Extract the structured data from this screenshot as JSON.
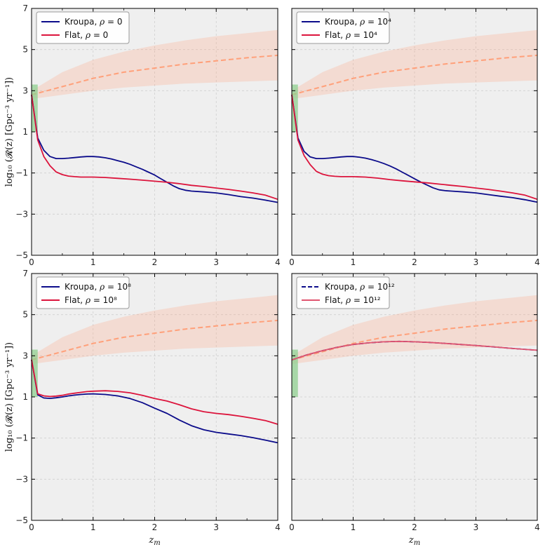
{
  "chart_data": [
    {
      "type": "line",
      "xlabel": "",
      "ylabel": "log₁₀ (𝓡(z) [Gpc⁻³ yr⁻¹])",
      "xlim": [
        0,
        4
      ],
      "ylim": [
        -5,
        7
      ],
      "xticks": [
        "0",
        "1",
        "2",
        "3",
        "4"
      ],
      "yticks": [
        "−5",
        "−3",
        "−1",
        "1",
        "3",
        "5",
        "7"
      ],
      "grid": true,
      "legend_position": "top-left",
      "observed_band": {
        "x": [
          0,
          0.1
        ],
        "y": [
          1.0,
          3.3
        ],
        "color": "#8fcf8f"
      },
      "reference_curve": {
        "x": [
          0,
          0.5,
          1,
          1.5,
          2,
          2.5,
          3,
          3.5,
          4
        ],
        "y": [
          2.8,
          3.2,
          3.6,
          3.9,
          4.1,
          4.3,
          4.45,
          4.6,
          4.72
        ],
        "lower": [
          2.6,
          2.8,
          3.0,
          3.15,
          3.25,
          3.35,
          3.4,
          3.45,
          3.5
        ],
        "upper": [
          3.0,
          3.9,
          4.5,
          4.9,
          5.2,
          5.45,
          5.65,
          5.8,
          5.95
        ],
        "color": "#ffa07a"
      },
      "series": [
        {
          "name": "Kroupa, ρ = 0",
          "color": "#0b0b8a",
          "dash": "solid",
          "x": [
            0,
            0.1,
            0.2,
            0.3,
            0.4,
            0.5,
            0.6,
            0.7,
            0.8,
            0.9,
            1.0,
            1.1,
            1.2,
            1.3,
            1.4,
            1.5,
            1.6,
            1.7,
            1.8,
            1.9,
            2.0,
            2.1,
            2.2,
            2.3,
            2.4,
            2.5,
            2.6,
            2.8,
            3.0,
            3.2,
            3.4,
            3.6,
            3.8,
            4.0
          ],
          "y": [
            2.8,
            0.7,
            0.1,
            -0.2,
            -0.3,
            -0.3,
            -0.28,
            -0.25,
            -0.22,
            -0.2,
            -0.2,
            -0.22,
            -0.26,
            -0.32,
            -0.4,
            -0.48,
            -0.58,
            -0.7,
            -0.82,
            -0.96,
            -1.1,
            -1.28,
            -1.45,
            -1.62,
            -1.76,
            -1.84,
            -1.88,
            -1.92,
            -1.97,
            -2.05,
            -2.15,
            -2.22,
            -2.32,
            -2.43
          ]
        },
        {
          "name": "Flat, ρ = 0",
          "color": "#dc143c",
          "dash": "solid",
          "x": [
            0,
            0.1,
            0.2,
            0.3,
            0.4,
            0.5,
            0.6,
            0.7,
            0.8,
            1.0,
            1.2,
            1.4,
            1.6,
            1.8,
            2.0,
            2.2,
            2.4,
            2.6,
            2.8,
            3.0,
            3.2,
            3.4,
            3.6,
            3.8,
            4.0
          ],
          "y": [
            2.8,
            0.6,
            -0.2,
            -0.65,
            -0.95,
            -1.08,
            -1.15,
            -1.18,
            -1.2,
            -1.2,
            -1.22,
            -1.26,
            -1.3,
            -1.35,
            -1.4,
            -1.45,
            -1.52,
            -1.6,
            -1.66,
            -1.73,
            -1.8,
            -1.88,
            -1.97,
            -2.08,
            -2.28
          ]
        }
      ]
    },
    {
      "type": "line",
      "xlabel": "",
      "ylabel": "",
      "xlim": [
        0,
        4
      ],
      "ylim": [
        -5,
        7
      ],
      "xticks": [
        "0",
        "1",
        "2",
        "3",
        "4"
      ],
      "yticks": [],
      "grid": true,
      "legend_position": "top-left",
      "observed_band": {
        "x": [
          0,
          0.1
        ],
        "y": [
          1.0,
          3.3
        ],
        "color": "#8fcf8f"
      },
      "reference_curve": {
        "x": [
          0,
          0.5,
          1,
          1.5,
          2,
          2.5,
          3,
          3.5,
          4
        ],
        "y": [
          2.8,
          3.2,
          3.6,
          3.9,
          4.1,
          4.3,
          4.45,
          4.6,
          4.72
        ],
        "lower": [
          2.6,
          2.8,
          3.0,
          3.15,
          3.25,
          3.35,
          3.4,
          3.45,
          3.5
        ],
        "upper": [
          3.0,
          3.9,
          4.5,
          4.9,
          5.2,
          5.45,
          5.65,
          5.8,
          5.95
        ],
        "color": "#ffa07a"
      },
      "series": [
        {
          "name": "Kroupa, ρ = 10⁴",
          "color": "#0b0b8a",
          "dash": "solid",
          "x": [
            0,
            0.1,
            0.2,
            0.3,
            0.4,
            0.5,
            0.6,
            0.7,
            0.8,
            0.9,
            1.0,
            1.1,
            1.2,
            1.3,
            1.4,
            1.5,
            1.6,
            1.7,
            1.8,
            1.9,
            2.0,
            2.1,
            2.2,
            2.3,
            2.4,
            2.5,
            2.6,
            2.8,
            3.0,
            3.2,
            3.4,
            3.6,
            3.8,
            4.0
          ],
          "y": [
            2.8,
            0.7,
            0.05,
            -0.22,
            -0.3,
            -0.3,
            -0.28,
            -0.25,
            -0.22,
            -0.2,
            -0.2,
            -0.23,
            -0.28,
            -0.35,
            -0.44,
            -0.54,
            -0.66,
            -0.8,
            -0.96,
            -1.12,
            -1.28,
            -1.44,
            -1.58,
            -1.72,
            -1.82,
            -1.86,
            -1.88,
            -1.92,
            -1.97,
            -2.05,
            -2.13,
            -2.2,
            -2.3,
            -2.42
          ]
        },
        {
          "name": "Flat, ρ = 10⁴",
          "color": "#dc143c",
          "dash": "solid",
          "x": [
            0,
            0.1,
            0.2,
            0.3,
            0.4,
            0.5,
            0.6,
            0.7,
            0.8,
            1.0,
            1.2,
            1.4,
            1.6,
            1.8,
            2.0,
            2.2,
            2.4,
            2.6,
            2.8,
            3.0,
            3.2,
            3.4,
            3.6,
            3.8,
            4.0
          ],
          "y": [
            2.8,
            0.6,
            -0.15,
            -0.6,
            -0.92,
            -1.06,
            -1.13,
            -1.16,
            -1.18,
            -1.18,
            -1.2,
            -1.25,
            -1.32,
            -1.38,
            -1.43,
            -1.48,
            -1.54,
            -1.6,
            -1.66,
            -1.73,
            -1.8,
            -1.88,
            -1.97,
            -2.08,
            -2.28
          ]
        }
      ]
    },
    {
      "type": "line",
      "xlabel": "z_m",
      "ylabel": "log₁₀ (𝓡(z) [Gpc⁻³ yr⁻¹])",
      "xlim": [
        0,
        4
      ],
      "ylim": [
        -5,
        7
      ],
      "xticks": [
        "0",
        "1",
        "2",
        "3",
        "4"
      ],
      "yticks": [
        "−5",
        "−3",
        "−1",
        "1",
        "3",
        "5",
        "7"
      ],
      "grid": true,
      "legend_position": "top-left",
      "observed_band": {
        "x": [
          0,
          0.1
        ],
        "y": [
          1.0,
          3.3
        ],
        "color": "#8fcf8f"
      },
      "reference_curve": {
        "x": [
          0,
          0.5,
          1,
          1.5,
          2,
          2.5,
          3,
          3.5,
          4
        ],
        "y": [
          2.8,
          3.2,
          3.6,
          3.9,
          4.1,
          4.3,
          4.45,
          4.6,
          4.72
        ],
        "lower": [
          2.6,
          2.8,
          3.0,
          3.15,
          3.25,
          3.35,
          3.4,
          3.45,
          3.5
        ],
        "upper": [
          3.0,
          3.9,
          4.5,
          4.9,
          5.2,
          5.45,
          5.65,
          5.8,
          5.95
        ],
        "color": "#ffa07a"
      },
      "series": [
        {
          "name": "Kroupa, ρ = 10⁸",
          "color": "#0b0b8a",
          "dash": "solid",
          "x": [
            0,
            0.1,
            0.2,
            0.3,
            0.4,
            0.5,
            0.6,
            0.7,
            0.8,
            0.9,
            1.0,
            1.2,
            1.4,
            1.6,
            1.8,
            2.0,
            2.2,
            2.4,
            2.6,
            2.8,
            3.0,
            3.2,
            3.4,
            3.6,
            3.8,
            4.0
          ],
          "y": [
            2.8,
            1.1,
            0.95,
            0.93,
            0.96,
            1.0,
            1.05,
            1.09,
            1.12,
            1.14,
            1.15,
            1.12,
            1.05,
            0.92,
            0.72,
            0.45,
            0.2,
            -0.12,
            -0.4,
            -0.6,
            -0.72,
            -0.8,
            -0.88,
            -0.98,
            -1.1,
            -1.23
          ]
        },
        {
          "name": "Flat, ρ = 10⁸",
          "color": "#dc143c",
          "dash": "solid",
          "x": [
            0,
            0.1,
            0.2,
            0.3,
            0.4,
            0.5,
            0.6,
            0.7,
            0.8,
            0.9,
            1.0,
            1.2,
            1.4,
            1.6,
            1.8,
            2.0,
            2.2,
            2.4,
            2.6,
            2.8,
            3.0,
            3.2,
            3.4,
            3.6,
            3.8,
            4.0
          ],
          "y": [
            2.8,
            1.15,
            1.05,
            1.02,
            1.04,
            1.08,
            1.14,
            1.18,
            1.22,
            1.26,
            1.28,
            1.3,
            1.27,
            1.2,
            1.08,
            0.92,
            0.8,
            0.62,
            0.42,
            0.28,
            0.2,
            0.14,
            0.06,
            -0.04,
            -0.15,
            -0.33
          ]
        }
      ]
    },
    {
      "type": "line",
      "xlabel": "z_m",
      "ylabel": "",
      "xlim": [
        0,
        4
      ],
      "ylim": [
        -5,
        7
      ],
      "xticks": [
        "0",
        "1",
        "2",
        "3",
        "4"
      ],
      "yticks": [],
      "grid": true,
      "legend_position": "top-left",
      "observed_band": {
        "x": [
          0,
          0.1
        ],
        "y": [
          1.0,
          3.3
        ],
        "color": "#8fcf8f"
      },
      "reference_curve": {
        "x": [
          0,
          0.5,
          1,
          1.5,
          2,
          2.5,
          3,
          3.5,
          4
        ],
        "y": [
          2.8,
          3.2,
          3.6,
          3.9,
          4.1,
          4.3,
          4.45,
          4.6,
          4.72
        ],
        "lower": [
          2.6,
          2.8,
          3.0,
          3.15,
          3.25,
          3.35,
          3.4,
          3.45,
          3.5
        ],
        "upper": [
          3.0,
          3.9,
          4.5,
          4.9,
          5.2,
          5.45,
          5.65,
          5.8,
          5.95
        ],
        "color": "#ffa07a"
      },
      "series": [
        {
          "name": "Kroupa, ρ = 10¹²",
          "color": "#0b0b8a",
          "dash": "dashed",
          "x": [
            0,
            0.25,
            0.5,
            0.75,
            1.0,
            1.25,
            1.5,
            1.75,
            2.0,
            2.25,
            2.5,
            2.75,
            3.0,
            3.25,
            3.5,
            3.75,
            4.0
          ],
          "y": [
            2.8,
            3.05,
            3.25,
            3.42,
            3.55,
            3.63,
            3.68,
            3.7,
            3.68,
            3.65,
            3.6,
            3.55,
            3.5,
            3.44,
            3.38,
            3.32,
            3.27
          ]
        },
        {
          "name": "Flat, ρ = 10¹²",
          "color": "#e05570",
          "dash": "solid",
          "x": [
            0,
            0.25,
            0.5,
            0.75,
            1.0,
            1.25,
            1.5,
            1.75,
            2.0,
            2.25,
            2.5,
            2.75,
            3.0,
            3.25,
            3.5,
            3.75,
            4.0
          ],
          "y": [
            2.8,
            3.05,
            3.25,
            3.42,
            3.55,
            3.63,
            3.68,
            3.7,
            3.68,
            3.65,
            3.6,
            3.55,
            3.5,
            3.44,
            3.38,
            3.32,
            3.27
          ]
        }
      ]
    }
  ]
}
